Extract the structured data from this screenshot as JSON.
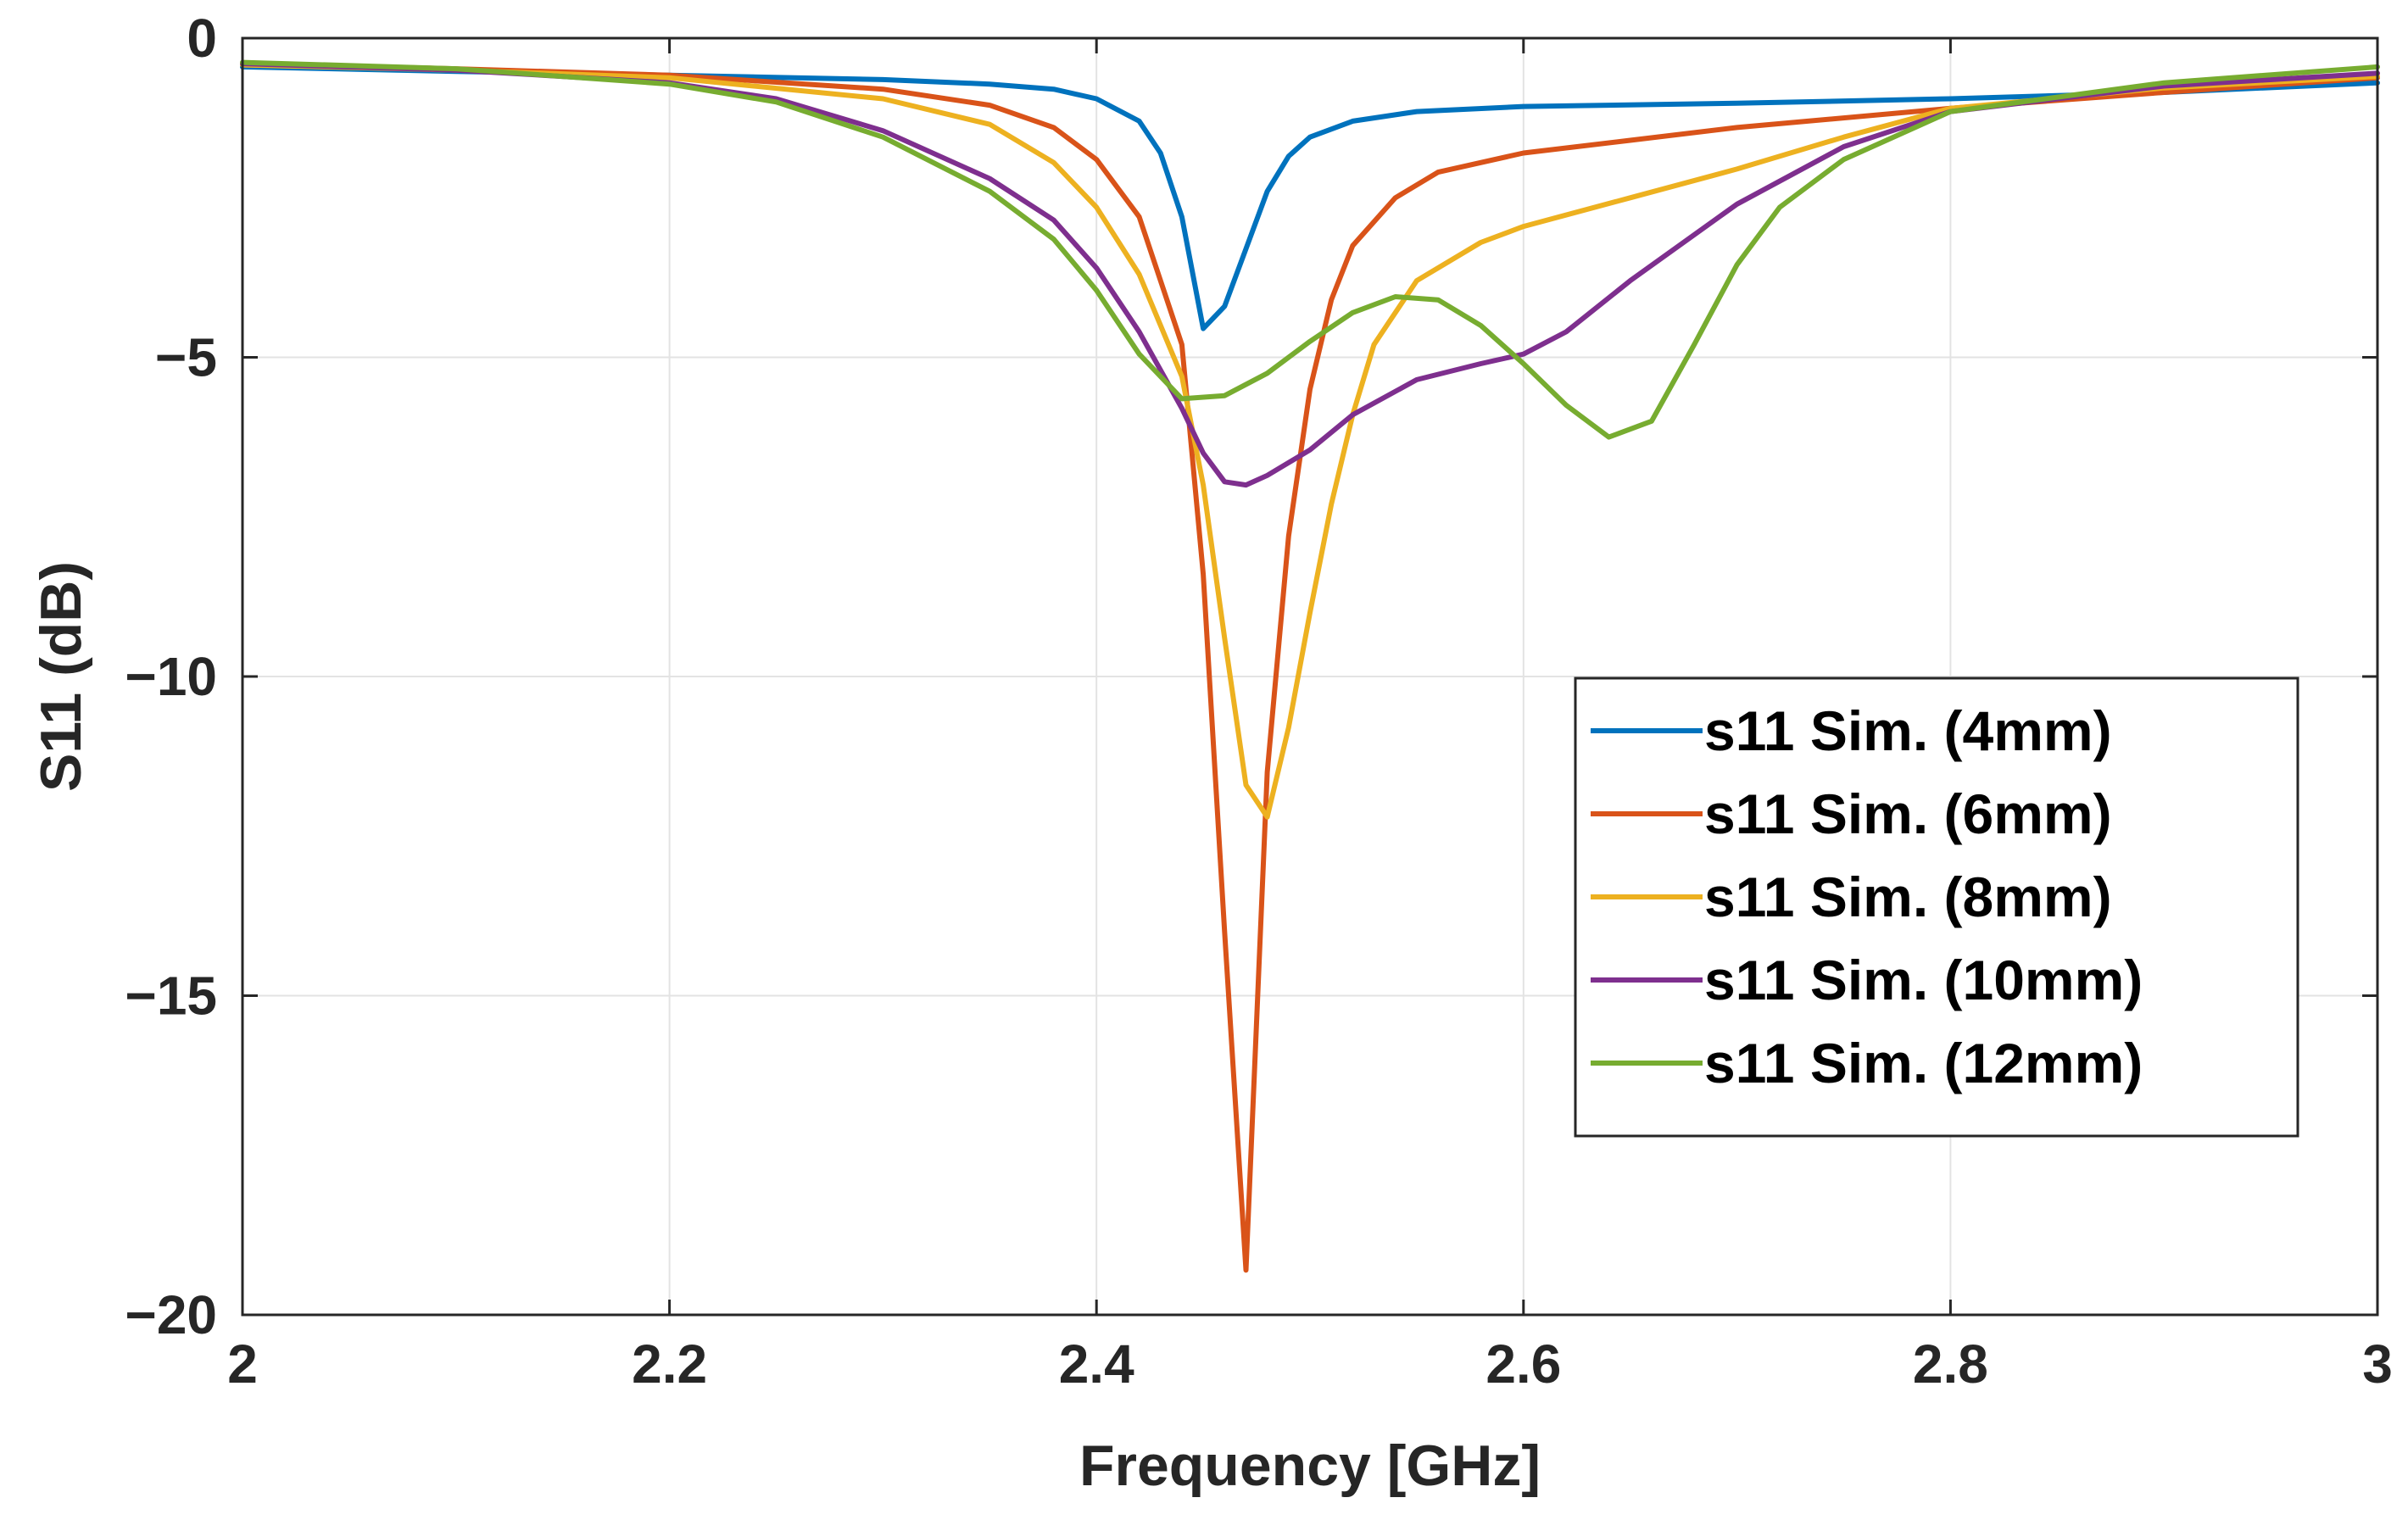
{
  "chart_data": {
    "type": "line",
    "title": "",
    "xlabel": "Frequency [GHz]",
    "ylabel": "S11 (dB)",
    "xlim": [
      2,
      3
    ],
    "ylim": [
      -20,
      0
    ],
    "grid": true,
    "legend_position": "right",
    "x_ticks": [
      2,
      2.2,
      2.4,
      2.6,
      2.8,
      3
    ],
    "x_tick_labels": [
      "2",
      "2.2",
      "2.4",
      "2.6",
      "2.8",
      "3"
    ],
    "y_ticks": [
      0,
      -5,
      -10,
      -15,
      -20
    ],
    "y_tick_labels": [
      "0",
      "−5",
      "−10",
      "−15",
      "−20"
    ],
    "series": [
      {
        "name": "s11 Sim. (4mm)",
        "color": "#0072BD",
        "points": [
          [
            2.0,
            -0.45
          ],
          [
            2.1,
            -0.52
          ],
          [
            2.2,
            -0.58
          ],
          [
            2.3,
            -0.65
          ],
          [
            2.35,
            -0.72
          ],
          [
            2.38,
            -0.8
          ],
          [
            2.4,
            -0.95
          ],
          [
            2.42,
            -1.3
          ],
          [
            2.43,
            -1.8
          ],
          [
            2.44,
            -2.8
          ],
          [
            2.45,
            -4.55
          ],
          [
            2.46,
            -4.2
          ],
          [
            2.47,
            -3.3
          ],
          [
            2.48,
            -2.4
          ],
          [
            2.49,
            -1.85
          ],
          [
            2.5,
            -1.55
          ],
          [
            2.52,
            -1.3
          ],
          [
            2.55,
            -1.15
          ],
          [
            2.6,
            -1.07
          ],
          [
            2.7,
            -1.02
          ],
          [
            2.8,
            -0.95
          ],
          [
            2.9,
            -0.85
          ],
          [
            3.0,
            -0.7
          ]
        ]
      },
      {
        "name": "s11 Sim. (6mm)",
        "color": "#D95319",
        "points": [
          [
            2.0,
            -0.4
          ],
          [
            2.1,
            -0.48
          ],
          [
            2.2,
            -0.58
          ],
          [
            2.3,
            -0.8
          ],
          [
            2.35,
            -1.05
          ],
          [
            2.38,
            -1.4
          ],
          [
            2.4,
            -1.9
          ],
          [
            2.42,
            -2.8
          ],
          [
            2.44,
            -4.8
          ],
          [
            2.45,
            -8.4
          ],
          [
            2.46,
            -14.0
          ],
          [
            2.47,
            -19.3
          ],
          [
            2.48,
            -11.5
          ],
          [
            2.49,
            -7.8
          ],
          [
            2.5,
            -5.5
          ],
          [
            2.51,
            -4.1
          ],
          [
            2.52,
            -3.25
          ],
          [
            2.54,
            -2.5
          ],
          [
            2.56,
            -2.1
          ],
          [
            2.6,
            -1.8
          ],
          [
            2.65,
            -1.6
          ],
          [
            2.7,
            -1.4
          ],
          [
            2.8,
            -1.1
          ],
          [
            2.9,
            -0.85
          ],
          [
            3.0,
            -0.62
          ]
        ]
      },
      {
        "name": "s11 Sim. (8mm)",
        "color": "#EDB120",
        "points": [
          [
            2.0,
            -0.42
          ],
          [
            2.1,
            -0.5
          ],
          [
            2.2,
            -0.62
          ],
          [
            2.3,
            -0.95
          ],
          [
            2.35,
            -1.35
          ],
          [
            2.38,
            -1.95
          ],
          [
            2.4,
            -2.65
          ],
          [
            2.42,
            -3.7
          ],
          [
            2.44,
            -5.3
          ],
          [
            2.45,
            -7.0
          ],
          [
            2.46,
            -9.4
          ],
          [
            2.47,
            -11.7
          ],
          [
            2.48,
            -12.2
          ],
          [
            2.49,
            -10.8
          ],
          [
            2.5,
            -9.0
          ],
          [
            2.51,
            -7.3
          ],
          [
            2.52,
            -5.9
          ],
          [
            2.53,
            -4.8
          ],
          [
            2.55,
            -3.8
          ],
          [
            2.58,
            -3.2
          ],
          [
            2.6,
            -2.95
          ],
          [
            2.65,
            -2.5
          ],
          [
            2.7,
            -2.05
          ],
          [
            2.75,
            -1.55
          ],
          [
            2.8,
            -1.1
          ],
          [
            2.9,
            -0.78
          ],
          [
            3.0,
            -0.6
          ]
        ]
      },
      {
        "name": "s11 Sim. (10mm)",
        "color": "#7E2F8E",
        "points": [
          [
            2.0,
            -0.4
          ],
          [
            2.1,
            -0.5
          ],
          [
            2.2,
            -0.7
          ],
          [
            2.25,
            -0.95
          ],
          [
            2.3,
            -1.45
          ],
          [
            2.35,
            -2.2
          ],
          [
            2.38,
            -2.85
          ],
          [
            2.4,
            -3.6
          ],
          [
            2.42,
            -4.6
          ],
          [
            2.44,
            -5.8
          ],
          [
            2.45,
            -6.5
          ],
          [
            2.46,
            -6.95
          ],
          [
            2.47,
            -7.0
          ],
          [
            2.48,
            -6.85
          ],
          [
            2.5,
            -6.45
          ],
          [
            2.52,
            -5.9
          ],
          [
            2.55,
            -5.35
          ],
          [
            2.58,
            -5.1
          ],
          [
            2.6,
            -4.95
          ],
          [
            2.62,
            -4.6
          ],
          [
            2.65,
            -3.8
          ],
          [
            2.7,
            -2.6
          ],
          [
            2.75,
            -1.7
          ],
          [
            2.8,
            -1.15
          ],
          [
            2.9,
            -0.75
          ],
          [
            3.0,
            -0.55
          ]
        ]
      },
      {
        "name": "s11 Sim. (12mm)",
        "color": "#77AC30",
        "points": [
          [
            2.0,
            -0.38
          ],
          [
            2.1,
            -0.48
          ],
          [
            2.2,
            -0.72
          ],
          [
            2.25,
            -1.0
          ],
          [
            2.3,
            -1.55
          ],
          [
            2.35,
            -2.4
          ],
          [
            2.38,
            -3.15
          ],
          [
            2.4,
            -3.95
          ],
          [
            2.42,
            -4.95
          ],
          [
            2.44,
            -5.65
          ],
          [
            2.46,
            -5.6
          ],
          [
            2.48,
            -5.25
          ],
          [
            2.5,
            -4.75
          ],
          [
            2.52,
            -4.3
          ],
          [
            2.54,
            -4.05
          ],
          [
            2.56,
            -4.1
          ],
          [
            2.58,
            -4.5
          ],
          [
            2.6,
            -5.1
          ],
          [
            2.62,
            -5.75
          ],
          [
            2.64,
            -6.25
          ],
          [
            2.66,
            -6.0
          ],
          [
            2.68,
            -4.8
          ],
          [
            2.7,
            -3.55
          ],
          [
            2.72,
            -2.65
          ],
          [
            2.75,
            -1.9
          ],
          [
            2.8,
            -1.15
          ],
          [
            2.9,
            -0.7
          ],
          [
            3.0,
            -0.45
          ]
        ]
      }
    ]
  }
}
